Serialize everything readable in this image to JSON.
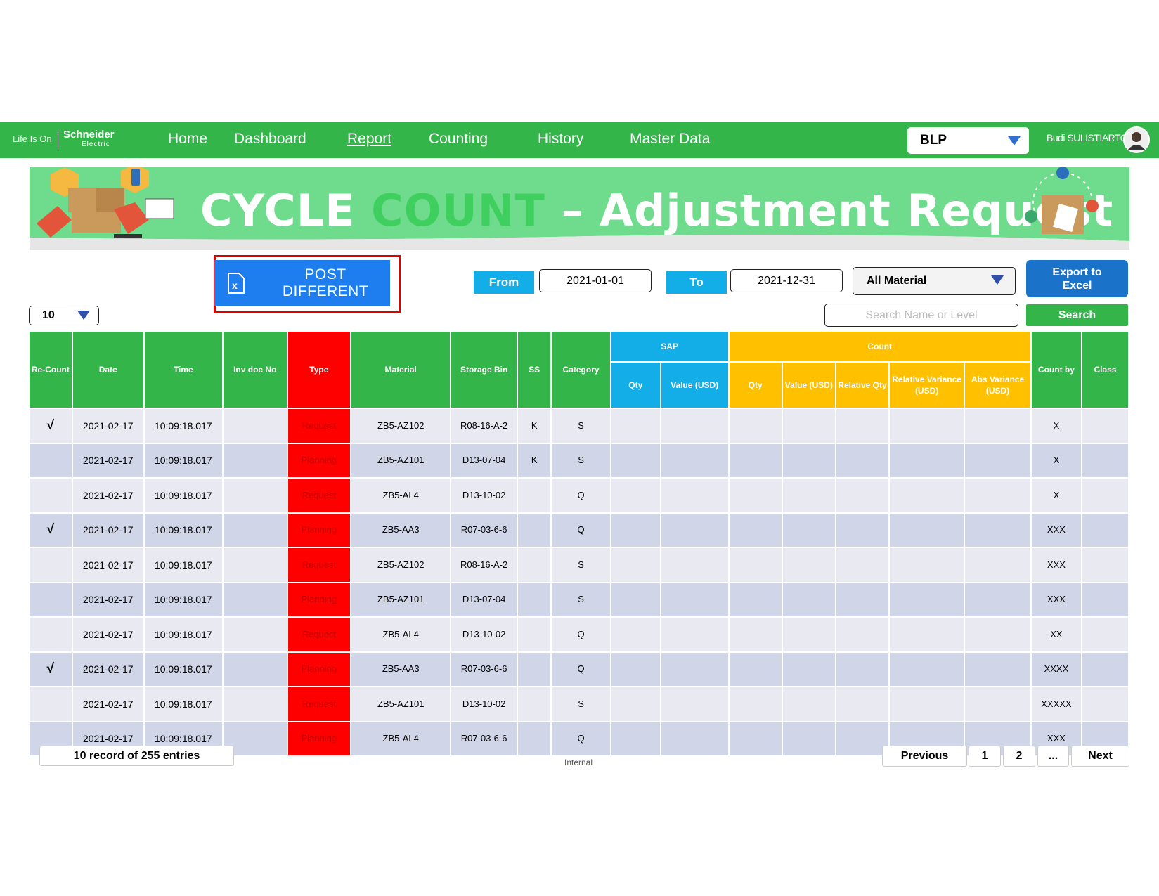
{
  "nav": {
    "logo": {
      "tagline": "Life Is On",
      "brand": "Schneider",
      "sub": "Electric"
    },
    "links": [
      "Home",
      "Dashboard",
      "Report",
      "Counting",
      "History",
      "Master Data"
    ],
    "site": "BLP",
    "user": "Budi SULISTIARTO"
  },
  "banner": {
    "title_1": "CYCLE",
    "title_2": "COUNT",
    "title_3": "– Adjustment Request"
  },
  "controls": {
    "post_button": "POST DIFFERENT",
    "from_label": "From",
    "from_value": "2021-01-01",
    "to_label": "To",
    "to_value": "2021-12-31",
    "material": "All Material",
    "export": "Export to Excel",
    "page_size": "10",
    "search_placeholder": "Search Name or Level",
    "search": "Search"
  },
  "table": {
    "groups": {
      "sap": "SAP",
      "count": "Count"
    },
    "headers": {
      "recount": "Re-Count",
      "date": "Date",
      "time": "Time",
      "inv_doc": "Inv doc No",
      "type": "Type",
      "material": "Material",
      "bin": "Storage Bin",
      "ss": "SS",
      "category": "Category",
      "sap_qty": "Qty",
      "sap_value": "Value (USD)",
      "count_qty": "Qty",
      "count_value": "Value (USD)",
      "rel_qty": "Relative Qty",
      "rel_var": "Relative Variance (USD)",
      "abs_var": "Abs Variance (USD)",
      "count_by": "Count by",
      "class": "Class"
    },
    "rows": [
      {
        "recount": "√",
        "date": "2021-02-17",
        "time": "10:09:18.017",
        "type": "Request",
        "material": "ZB5-AZ102",
        "bin": "R08-16-A-2",
        "ss": "K",
        "category": "S",
        "count_by": "X"
      },
      {
        "date": "2021-02-17",
        "time": "10:09:18.017",
        "type": "Planning",
        "material": "ZB5-AZ101",
        "bin": "D13-07-04",
        "ss": "K",
        "category": "S",
        "count_by": "X"
      },
      {
        "date": "2021-02-17",
        "time": "10:09:18.017",
        "type": "Request",
        "material": "ZB5-AL4",
        "bin": "D13-10-02",
        "category": "Q",
        "count_by": "X"
      },
      {
        "recount": "√",
        "date": "2021-02-17",
        "time": "10:09:18.017",
        "type": "Planning",
        "material": "ZB5-AA3",
        "bin": "R07-03-6-6",
        "category": "Q",
        "count_by": "XXX"
      },
      {
        "date": "2021-02-17",
        "time": "10:09:18.017",
        "type": "Request",
        "material": "ZB5-AZ102",
        "bin": "R08-16-A-2",
        "category": "S",
        "count_by": "XXX"
      },
      {
        "date": "2021-02-17",
        "time": "10:09:18.017",
        "type": "Planning",
        "material": "ZB5-AZ101",
        "bin": "D13-07-04",
        "category": "S",
        "count_by": "XXX"
      },
      {
        "date": "2021-02-17",
        "time": "10:09:18.017",
        "type": "Request",
        "material": "ZB5-AL4",
        "bin": "D13-10-02",
        "category": "Q",
        "count_by": "XX"
      },
      {
        "recount": "√",
        "date": "2021-02-17",
        "time": "10:09:18.017",
        "type": "Planning",
        "material": "ZB5-AA3",
        "bin": "R07-03-6-6",
        "category": "Q",
        "count_by": "XXXX"
      },
      {
        "date": "2021-02-17",
        "time": "10:09:18.017",
        "type": "Request",
        "material": "ZB5-AZ101",
        "bin": "D13-10-02",
        "category": "S",
        "count_by": "XXXXX"
      },
      {
        "date": "2021-02-17",
        "time": "10:09:18.017",
        "type": "Planning",
        "material": "ZB5-AL4",
        "bin": "R07-03-6-6",
        "category": "Q",
        "count_by": "XXX"
      }
    ]
  },
  "footer": {
    "records": "10 record of 255 entries",
    "classification": "Internal",
    "pagination": [
      "Previous",
      "1",
      "2",
      "...",
      "Next"
    ]
  }
}
